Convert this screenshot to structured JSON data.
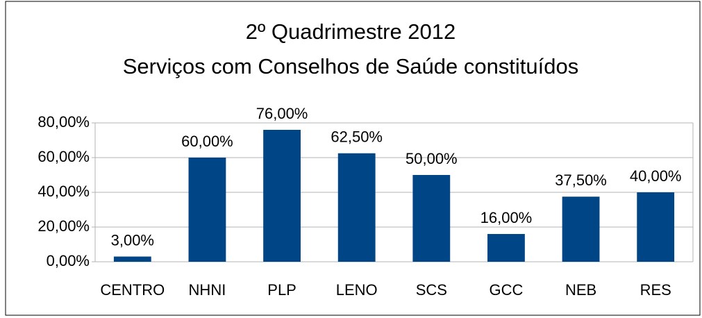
{
  "chart_data": {
    "type": "bar",
    "title": "2º Quadrimestre 2012",
    "subtitle": "Serviços com Conselhos de Saúde constituídos",
    "categories": [
      "CENTRO",
      "NHNI",
      "PLP",
      "LENO",
      "SCS",
      "GCC",
      "NEB",
      "RES"
    ],
    "values": [
      3,
      60,
      76,
      62.5,
      50,
      16,
      37.5,
      40
    ],
    "value_labels": [
      "3,00%",
      "60,00%",
      "76,00%",
      "62,50%",
      "50,00%",
      "16,00%",
      "37,50%",
      "40,00%"
    ],
    "color": "#004586",
    "ylim": [
      0,
      80
    ],
    "yticks": [
      {
        "value": 0,
        "label": "0,00%"
      },
      {
        "value": 20,
        "label": "20,00%"
      },
      {
        "value": 40,
        "label": "40,00%"
      },
      {
        "value": 60,
        "label": "60,00%"
      },
      {
        "value": 80,
        "label": "80,00%"
      }
    ],
    "grid": true
  }
}
